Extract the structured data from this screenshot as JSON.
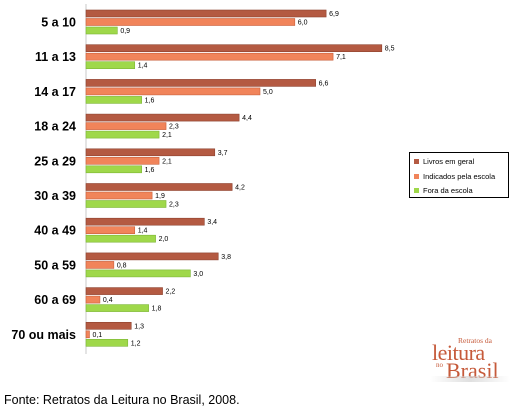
{
  "chart_data": {
    "type": "bar",
    "orientation": "horizontal",
    "categories": [
      "5 a 10",
      "11 a 13",
      "14 a 17",
      "18 a 24",
      "25 a 29",
      "30 a 39",
      "40 a 49",
      "50 a 59",
      "60 a 69",
      "70 ou mais"
    ],
    "series": [
      {
        "name": "Livros em geral",
        "color": "#b45a42",
        "values": [
          6.9,
          8.5,
          6.6,
          4.4,
          3.7,
          4.2,
          3.4,
          3.8,
          2.2,
          1.3
        ],
        "labels": [
          "6,9",
          "8,5",
          "6,6",
          "4,4",
          "3,7",
          "4,2",
          "3,4",
          "3,8",
          "2,2",
          "1,3"
        ]
      },
      {
        "name": "Indicados pela escola",
        "color": "#f1845a",
        "values": [
          6.0,
          7.1,
          5.0,
          2.3,
          2.1,
          1.9,
          1.4,
          0.8,
          0.4,
          0.1
        ],
        "labels": [
          "6,0",
          "7,1",
          "5,0",
          "2,3",
          "2,1",
          "1,9",
          "1,4",
          "0,8",
          "0,4",
          "0,1"
        ]
      },
      {
        "name": "Fora da escola",
        "color": "#9fd84a",
        "values": [
          0.9,
          1.4,
          1.6,
          2.1,
          1.6,
          2.3,
          2.0,
          3.0,
          1.8,
          1.2
        ],
        "labels": [
          "0,9",
          "1,4",
          "1,6",
          "2,1",
          "1,6",
          "2,3",
          "2,0",
          "3,0",
          "1,8",
          "1,2"
        ]
      }
    ],
    "xlim": [
      0,
      9
    ],
    "grid": false,
    "legend_position": "right"
  },
  "source": "Fonte: Retratos da Leitura no Brasil, 2008.",
  "logo": {
    "line1": "Retratos da",
    "line2": "leitura",
    "line3": "no",
    "line4": "Brasil"
  }
}
